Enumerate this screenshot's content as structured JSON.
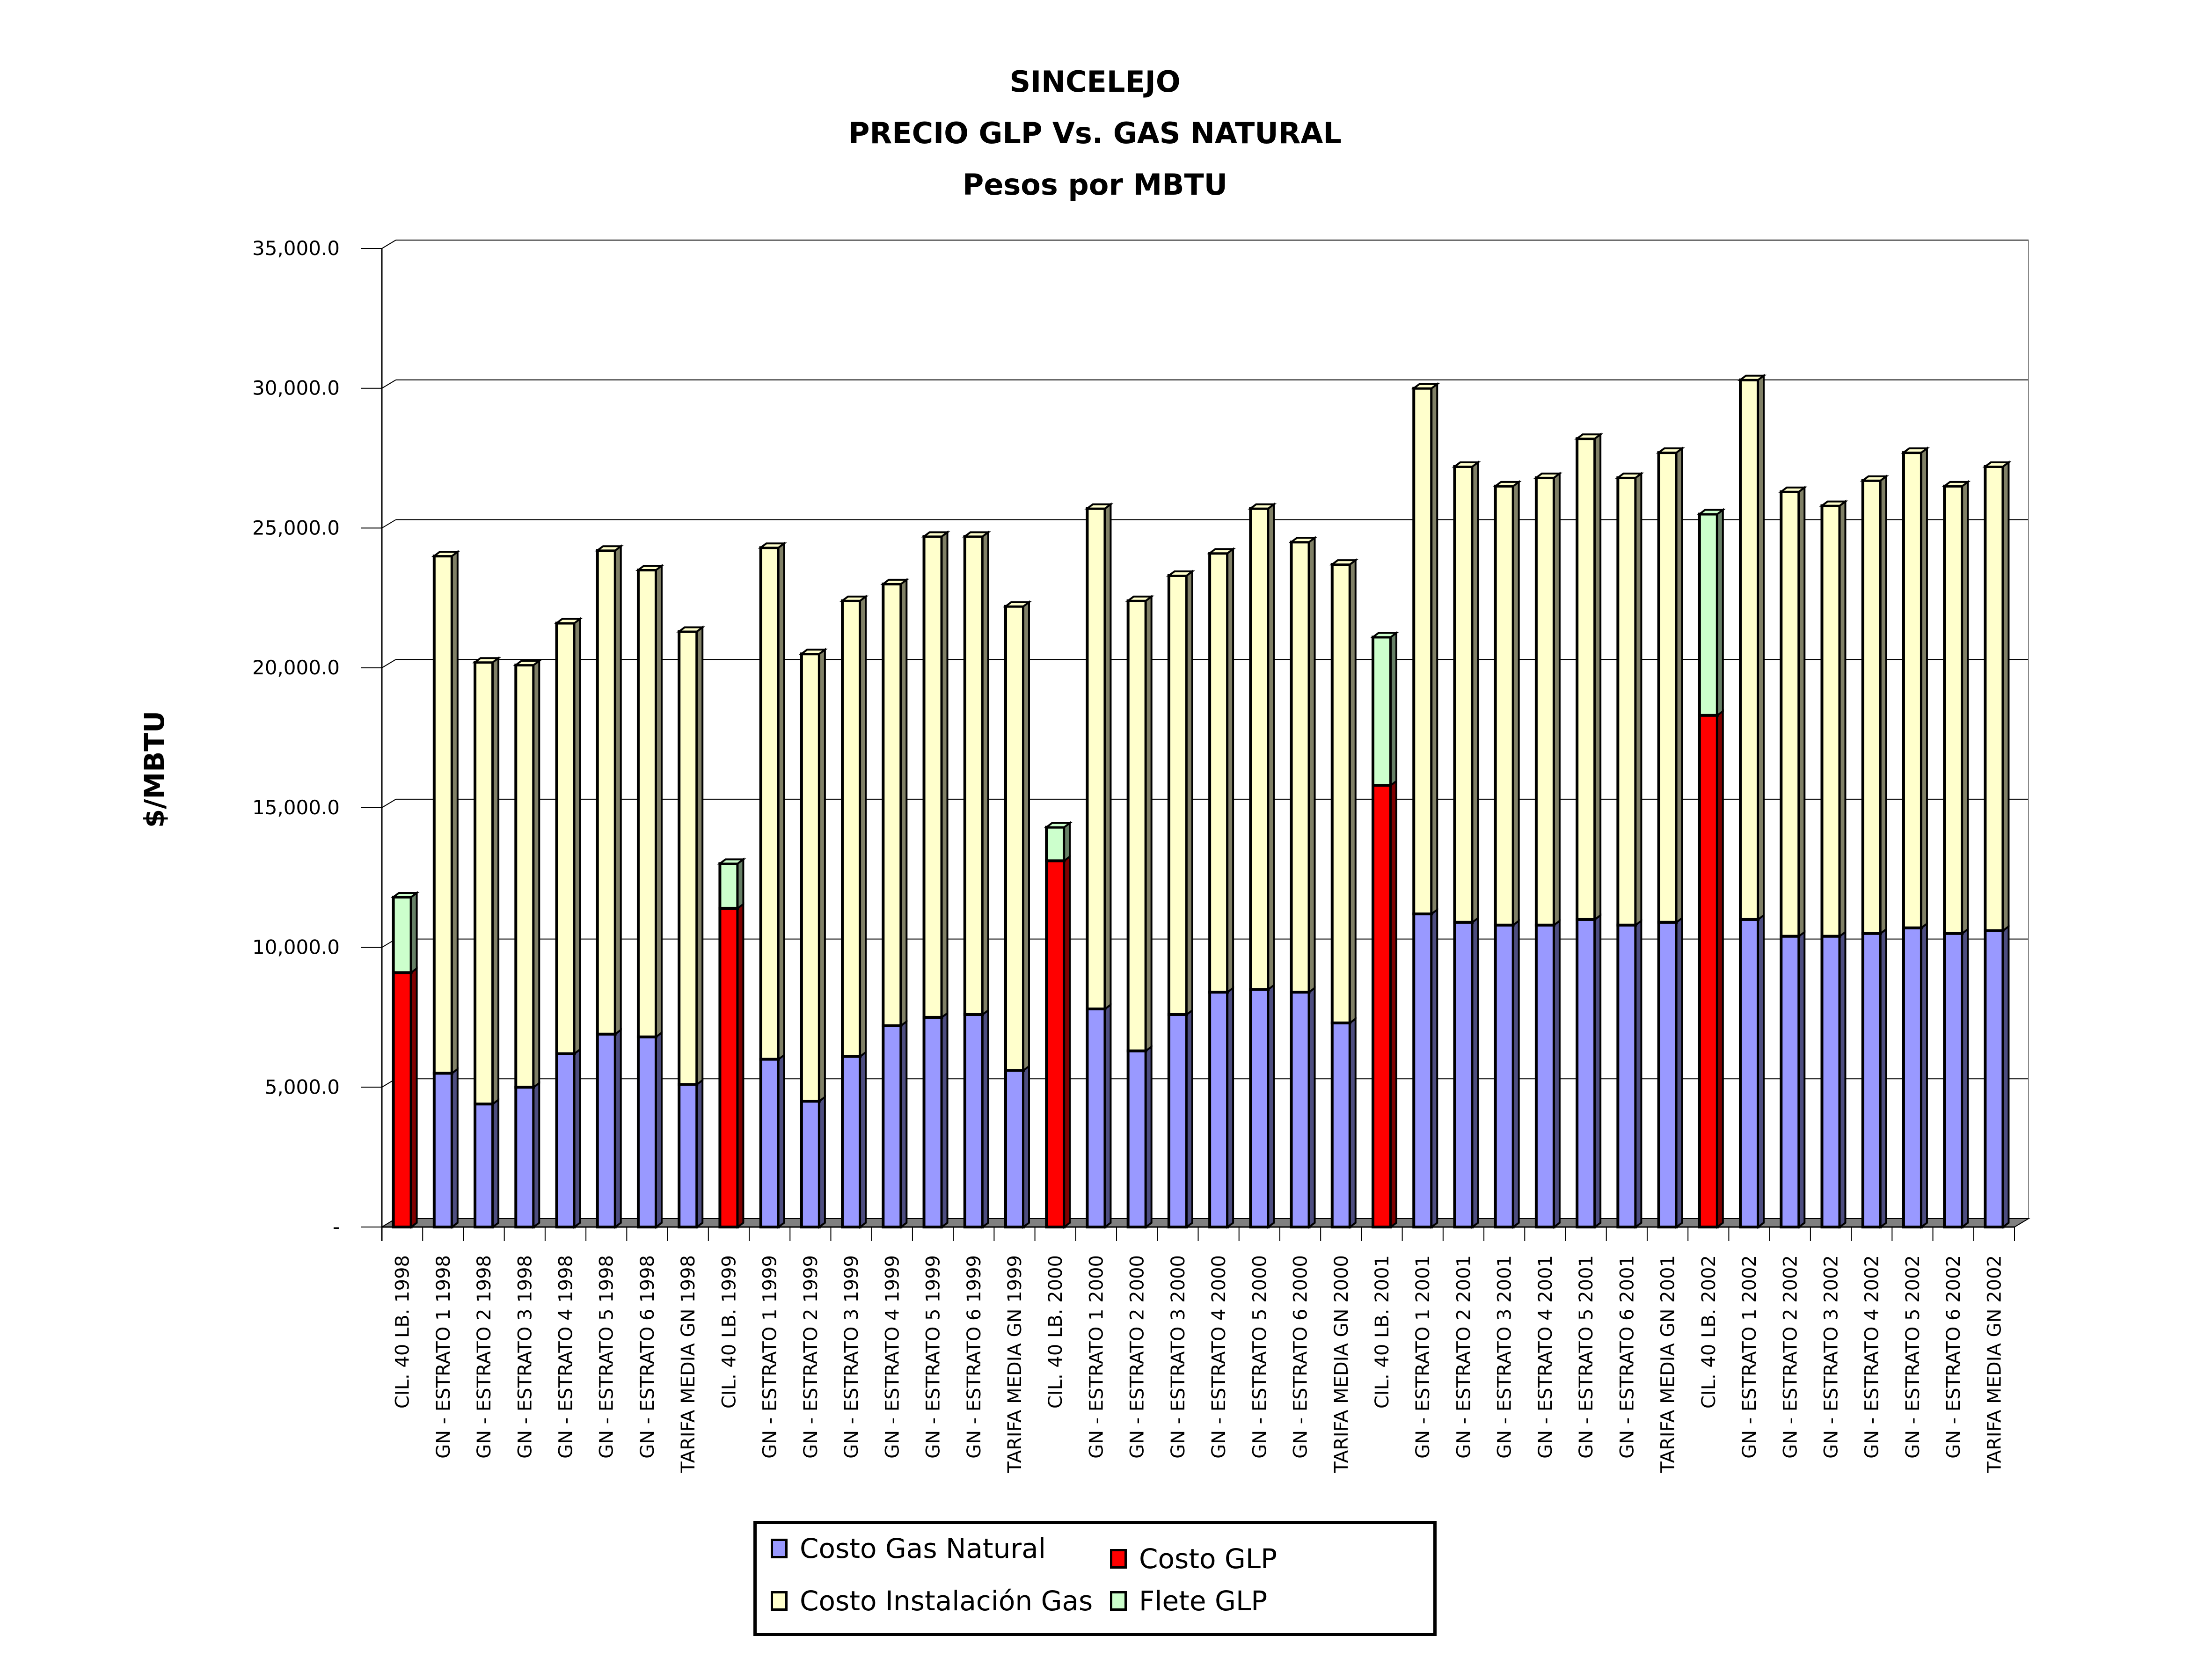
{
  "chart_data": {
    "type": "bar",
    "stacked": true,
    "title": [
      "SINCELEJO",
      "PRECIO GLP Vs. GAS NATURAL",
      "Pesos por MBTU"
    ],
    "xlabel": "",
    "ylabel": "$/MBTU",
    "ylim": [
      0,
      35000
    ],
    "yticks": [
      0,
      5000,
      10000,
      15000,
      20000,
      25000,
      30000,
      35000
    ],
    "ytick_labels": [
      "-",
      "5,000.0",
      "10,000.0",
      "15,000.0",
      "20,000.0",
      "25,000.0",
      "30,000.0",
      "35,000.0"
    ],
    "grid": true,
    "legend_position": "bottom",
    "categories": [
      "CIL. 40 LB. 1998",
      "GN - ESTRATO 1 1998",
      "GN - ESTRATO 2 1998",
      "GN - ESTRATO 3 1998",
      "GN - ESTRATO 4 1998",
      "GN - ESTRATO 5 1998",
      "GN - ESTRATO 6 1998",
      "TARIFA MEDIA GN 1998",
      "CIL. 40 LB. 1999",
      "GN - ESTRATO 1 1999",
      "GN - ESTRATO 2 1999",
      "GN - ESTRATO 3 1999",
      "GN - ESTRATO 4 1999",
      "GN - ESTRATO 5 1999",
      "GN - ESTRATO 6 1999",
      "TARIFA MEDIA GN 1999",
      "CIL. 40 LB. 2000",
      "GN - ESTRATO 1 2000",
      "GN - ESTRATO 2 2000",
      "GN - ESTRATO 3 2000",
      "GN - ESTRATO 4 2000",
      "GN - ESTRATO 5 2000",
      "GN - ESTRATO 6 2000",
      "TARIFA MEDIA GN 2000",
      "CIL. 40 LB. 2001",
      "GN - ESTRATO 1 2001",
      "GN - ESTRATO 2 2001",
      "GN - ESTRATO 3 2001",
      "GN - ESTRATO 4 2001",
      "GN - ESTRATO 5 2001",
      "GN - ESTRATO 6 2001",
      "TARIFA MEDIA GN 2001",
      "CIL. 40 LB. 2002",
      "GN - ESTRATO 1 2002",
      "GN - ESTRATO 2 2002",
      "GN - ESTRATO 3 2002",
      "GN - ESTRATO 4 2002",
      "GN - ESTRATO 5 2002",
      "GN - ESTRATO 6 2002",
      "TARIFA MEDIA GN 2002"
    ],
    "series": [
      {
        "name": "Costo Gas Natural",
        "color": "#9999ff",
        "values": [
          0,
          5500,
          4400,
          5000,
          6200,
          6900,
          6800,
          5100,
          0,
          6000,
          4500,
          6100,
          7200,
          7500,
          7600,
          5600,
          0,
          7800,
          6300,
          7600,
          8400,
          8500,
          8400,
          7300,
          0,
          11200,
          10900,
          10800,
          10800,
          11000,
          10800,
          10900,
          0,
          11000,
          10400,
          10400,
          10500,
          10700,
          10500,
          10600
        ]
      },
      {
        "name": "Costo Instalación Gas",
        "color": "#ffffcc",
        "values": [
          0,
          18500,
          15800,
          15100,
          15400,
          17300,
          16700,
          16200,
          0,
          18300,
          16000,
          16300,
          15800,
          17200,
          17100,
          16600,
          0,
          17900,
          16100,
          15700,
          15700,
          17200,
          16100,
          16400,
          0,
          18800,
          16300,
          15700,
          16000,
          17200,
          16000,
          16800,
          0,
          19300,
          15900,
          15400,
          16200,
          17000,
          16000,
          16600
        ]
      },
      {
        "name": "Costo GLP",
        "color": "#ff0000",
        "values": [
          9100,
          0,
          0,
          0,
          0,
          0,
          0,
          0,
          11400,
          0,
          0,
          0,
          0,
          0,
          0,
          0,
          13100,
          0,
          0,
          0,
          0,
          0,
          0,
          0,
          15800,
          0,
          0,
          0,
          0,
          0,
          0,
          0,
          18300,
          0,
          0,
          0,
          0,
          0,
          0,
          0
        ]
      },
      {
        "name": "Flete GLP",
        "color": "#ccffcc",
        "values": [
          2700,
          0,
          0,
          0,
          0,
          0,
          0,
          0,
          1600,
          0,
          0,
          0,
          0,
          0,
          0,
          0,
          1200,
          0,
          0,
          0,
          0,
          0,
          0,
          0,
          5300,
          0,
          0,
          0,
          0,
          0,
          0,
          0,
          7200,
          0,
          0,
          0,
          0,
          0,
          0,
          0
        ]
      }
    ]
  },
  "legend": {
    "items": [
      {
        "label": "Costo Gas Natural",
        "color": "#9999ff"
      },
      {
        "label": "Costo GLP",
        "color": "#ff0000"
      },
      {
        "label": "Costo Instalación Gas",
        "color": "#ffffcc"
      },
      {
        "label": "Flete GLP",
        "color": "#ccffcc"
      }
    ]
  }
}
